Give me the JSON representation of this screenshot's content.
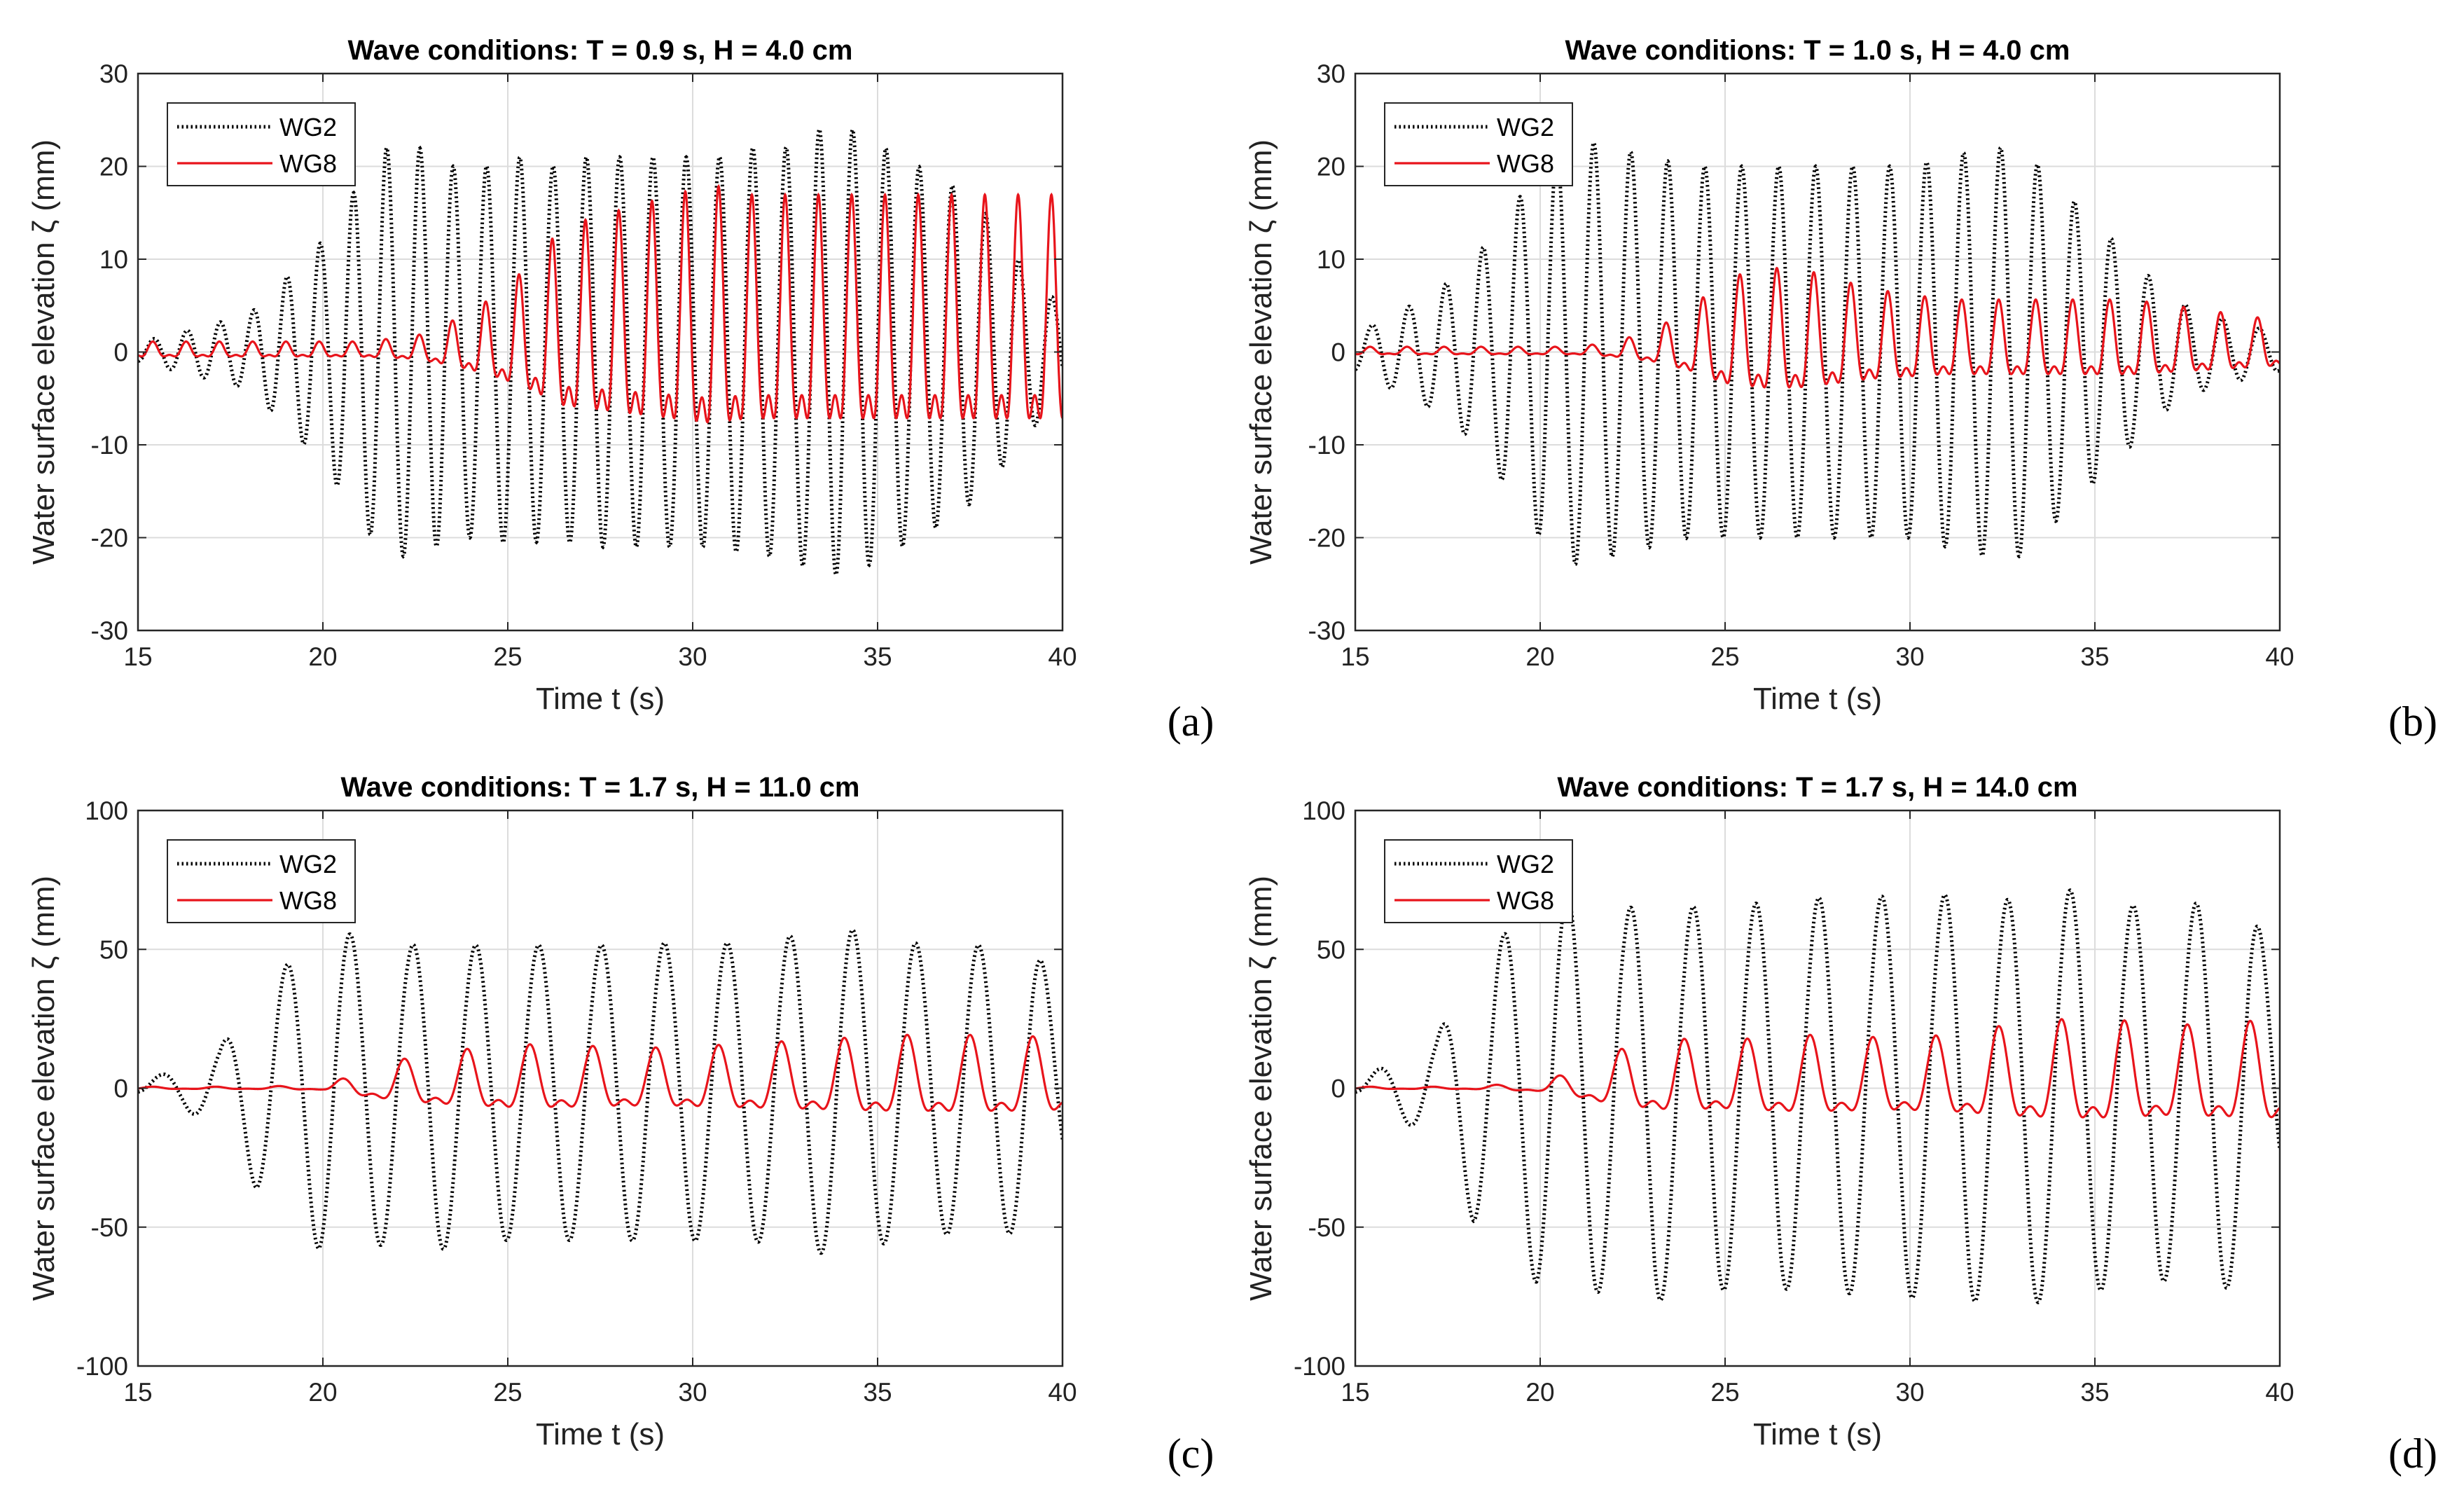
{
  "chart_data": [
    {
      "type": "line",
      "panel_label": "(a)",
      "title": "Wave conditions: T = 0.9 s, H = 4.0 cm",
      "xlabel": "Time  t (s)",
      "ylabel": "Water surface elevation  ζ (mm)",
      "xlim": [
        15,
        40
      ],
      "ylim": [
        -30,
        30
      ],
      "xticks": [
        15,
        20,
        25,
        30,
        35,
        40
      ],
      "yticks": [
        -30,
        -20,
        -10,
        0,
        10,
        20,
        30
      ],
      "grid": true,
      "legend_position": "top-left",
      "series": [
        {
          "name": "WG2",
          "color": "#000000",
          "style": "dotted",
          "x": [
            15.0,
            16.0,
            17.0,
            18.0,
            19.0,
            20.0,
            20.8,
            21.7,
            22.6,
            23.5,
            24.4,
            25.3,
            26.2,
            27.1,
            28.0,
            28.9,
            29.8,
            30.7,
            31.6,
            32.5,
            33.4,
            34.3,
            35.2,
            36.1,
            37.0,
            37.9,
            38.8,
            39.7,
            40.0
          ],
          "amplitude": [
            1,
            2,
            3,
            4,
            8,
            12,
            17,
            22,
            22,
            20,
            20,
            21,
            20,
            21,
            21,
            21,
            21,
            21,
            22,
            22,
            24,
            24,
            22,
            20,
            18,
            15,
            10,
            6,
            5
          ]
        },
        {
          "name": "WG8",
          "color": "#e8141b",
          "style": "solid",
          "x": [
            15.0,
            17.0,
            19.0,
            21.0,
            22.5,
            23.5,
            24.5,
            25.5,
            26.5,
            27.5,
            28.5,
            29.5,
            30.5,
            31.5,
            32.5,
            33.5,
            34.5,
            35.5,
            36.5,
            37.5,
            38.5,
            39.5,
            40.0
          ],
          "amplitude": [
            1,
            1,
            1,
            1,
            1.5,
            3,
            5,
            8,
            12,
            13,
            14,
            15,
            16,
            15,
            15,
            15,
            15,
            15,
            15,
            15,
            15,
            15,
            15
          ]
        }
      ]
    },
    {
      "type": "line",
      "panel_label": "(b)",
      "title": "Wave conditions: T = 1.0 s, H = 4.0 cm",
      "xlabel": "Time  t (s)",
      "ylabel": "Water surface elevation  ζ (mm)",
      "xlim": [
        15,
        40
      ],
      "ylim": [
        -30,
        30
      ],
      "xticks": [
        15,
        20,
        25,
        30,
        35,
        40
      ],
      "yticks": [
        -30,
        -20,
        -10,
        0,
        10,
        20,
        30
      ],
      "grid": true,
      "legend_position": "top-left",
      "series": [
        {
          "name": "WG2",
          "color": "#000000",
          "style": "dotted",
          "x": [
            15.0,
            16.0,
            17.0,
            18.0,
            19.0,
            20.0,
            21.0,
            22.0,
            23.0,
            24.0,
            25.0,
            26.0,
            27.0,
            28.0,
            29.0,
            30.0,
            31.0,
            32.0,
            33.0,
            34.0,
            35.0,
            36.0,
            37.0,
            38.0,
            39.0,
            40.0
          ],
          "amplitude": [
            2,
            4,
            6,
            9,
            14,
            20,
            23,
            22,
            21,
            20,
            20,
            20,
            20,
            20,
            20,
            20,
            21,
            22,
            22,
            18,
            14,
            10,
            6,
            4,
            3,
            2
          ]
        },
        {
          "name": "WG8",
          "color": "#e8141b",
          "style": "solid",
          "x": [
            15.0,
            17.0,
            19.0,
            21.0,
            22.0,
            23.0,
            24.0,
            25.0,
            26.0,
            27.0,
            28.0,
            29.0,
            30.0,
            31.0,
            32.0,
            33.0,
            34.0,
            35.0,
            36.0,
            37.0,
            38.0,
            39.0,
            40.0
          ],
          "amplitude": [
            0.5,
            0.5,
            0.5,
            0.5,
            1,
            2,
            4,
            7,
            8,
            8,
            7,
            6,
            5.5,
            5,
            5,
            5,
            5,
            5,
            5,
            4.5,
            4,
            3.5,
            3
          ]
        }
      ]
    },
    {
      "type": "line",
      "panel_label": "(c)",
      "title": "Wave conditions: T = 1.7 s, H = 11.0 cm",
      "xlabel": "Time  t (s)",
      "ylabel": "Water surface elevation  ζ (mm)",
      "xlim": [
        15,
        40
      ],
      "ylim": [
        -100,
        100
      ],
      "xticks": [
        15,
        20,
        25,
        30,
        35,
        40
      ],
      "yticks": [
        -100,
        -50,
        0,
        50,
        100
      ],
      "grid": true,
      "legend_position": "top-left",
      "series": [
        {
          "name": "WG2",
          "color": "#000000",
          "style": "dotted",
          "x": [
            15.0,
            16.3,
            17.2,
            18.2,
            19.0,
            19.9,
            20.6,
            21.4,
            22.3,
            23.1,
            23.9,
            24.8,
            25.6,
            26.5,
            27.3,
            28.2,
            29.0,
            29.9,
            30.7,
            31.6,
            32.4,
            33.3,
            34.1,
            35.0,
            35.8,
            36.7,
            37.5,
            38.4,
            39.2,
            40.0
          ],
          "amplitude": [
            2,
            8,
            14,
            36,
            44,
            58,
            55,
            58,
            50,
            60,
            50,
            56,
            50,
            56,
            50,
            56,
            51,
            56,
            51,
            56,
            53,
            60,
            57,
            57,
            52,
            53,
            51,
            53,
            50,
            35
          ]
        },
        {
          "name": "WG8",
          "color": "#e8141b",
          "style": "solid",
          "x": [
            15.0,
            18.0,
            20.0,
            21.0,
            22.0,
            23.5,
            25.0,
            26.5,
            28.0,
            29.5,
            31.0,
            32.5,
            34.0,
            35.5,
            37.0,
            38.5,
            40.0
          ],
          "amplitude": [
            0.5,
            0.5,
            1,
            5,
            9,
            12,
            14,
            14,
            13,
            13,
            14,
            15,
            16,
            17,
            17,
            17,
            16
          ]
        }
      ]
    },
    {
      "type": "line",
      "panel_label": "(d)",
      "title": "Wave conditions: T = 1.7 s, H = 14.0 cm",
      "xlabel": "Time  t (s)",
      "ylabel": "Water surface elevation  ζ (mm)",
      "xlim": [
        15,
        40
      ],
      "ylim": [
        -100,
        100
      ],
      "xticks": [
        15,
        20,
        25,
        30,
        35,
        40
      ],
      "yticks": [
        -100,
        -50,
        0,
        50,
        100
      ],
      "grid": true,
      "legend_position": "top-left",
      "series": [
        {
          "name": "WG2",
          "color": "#000000",
          "style": "dotted",
          "x": [
            15.0,
            16.3,
            17.2,
            18.2,
            19.0,
            19.9,
            20.6,
            21.4,
            22.3,
            23.1,
            23.9,
            24.8,
            25.6,
            26.5,
            27.3,
            28.2,
            29.0,
            29.9,
            30.7,
            31.6,
            32.4,
            33.3,
            34.1,
            35.0,
            35.8,
            36.7,
            37.5,
            38.4,
            39.2,
            40.0
          ],
          "amplitude": [
            2,
            12,
            18,
            48,
            55,
            70,
            68,
            76,
            62,
            80,
            62,
            75,
            64,
            74,
            66,
            76,
            66,
            78,
            66,
            80,
            64,
            79,
            70,
            75,
            64,
            71,
            64,
            74,
            64,
            42
          ]
        },
        {
          "name": "WG8",
          "color": "#e8141b",
          "style": "solid",
          "x": [
            15.0,
            18.0,
            20.0,
            21.0,
            22.0,
            23.5,
            25.0,
            26.5,
            28.0,
            29.5,
            31.0,
            32.5,
            34.0,
            35.5,
            37.0,
            38.5,
            40.0
          ],
          "amplitude": [
            0.5,
            0.5,
            2,
            6,
            12,
            16,
            15,
            17,
            17,
            16,
            17,
            20,
            22,
            22,
            20,
            21,
            22
          ]
        }
      ]
    }
  ]
}
